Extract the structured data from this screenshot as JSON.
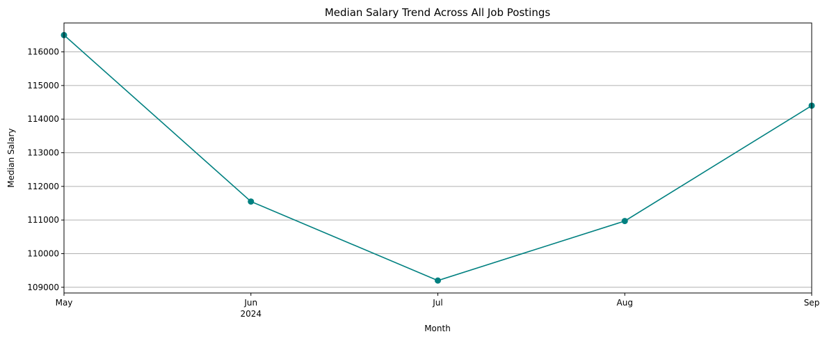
{
  "chart_data": {
    "type": "line",
    "title": "Median Salary Trend Across All Job Postings",
    "xlabel": "Month",
    "ylabel": "Median Salary",
    "x": [
      "2024-05",
      "2024-06",
      "2024-07",
      "2024-08",
      "2024-09"
    ],
    "x_tick_labels": [
      "May",
      "Jun",
      "Jul",
      "Aug",
      "Sep"
    ],
    "x_year_label": "2024",
    "series": [
      {
        "values": [
          116500,
          111550,
          109200,
          110970,
          114400
        ],
        "color": "#008080",
        "marker": "circle"
      }
    ],
    "ylim": [
      108830,
      116860
    ],
    "y_ticks": [
      109000,
      110000,
      111000,
      112000,
      113000,
      114000,
      115000,
      116000
    ],
    "grid": "horizontal"
  }
}
